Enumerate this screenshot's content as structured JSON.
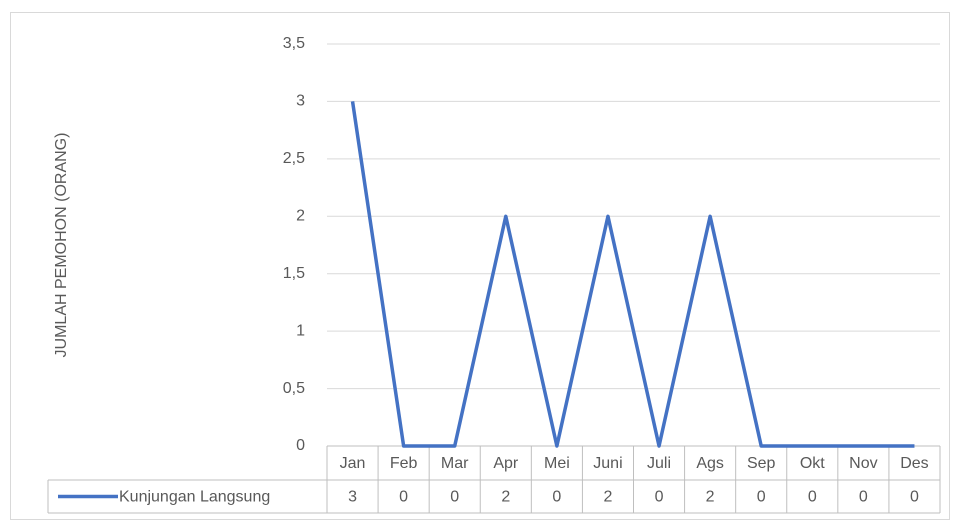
{
  "chart_data": {
    "type": "line",
    "y_label": "JUMLAH PEMOHON (ORANG)",
    "categories": [
      "Jan",
      "Feb",
      "Mar",
      "Apr",
      "Mei",
      "Juni",
      "Juli",
      "Ags",
      "Sep",
      "Okt",
      "Nov",
      "Des"
    ],
    "series": [
      {
        "name": "Kunjungan Langsung",
        "color": "#4472c4",
        "values": [
          3,
          0,
          0,
          2,
          0,
          2,
          0,
          2,
          0,
          0,
          0,
          0
        ]
      }
    ],
    "ylim": [
      0,
      3.5
    ],
    "yticks": [
      0,
      {
        "value": 0.5,
        "label": "0,5"
      },
      1,
      {
        "value": 1.5,
        "label": "1,5"
      },
      2,
      {
        "value": 2.5,
        "label": "2,5"
      },
      3,
      {
        "value": 3.5,
        "label": "3,5"
      }
    ],
    "grid": true,
    "data_table": true
  }
}
